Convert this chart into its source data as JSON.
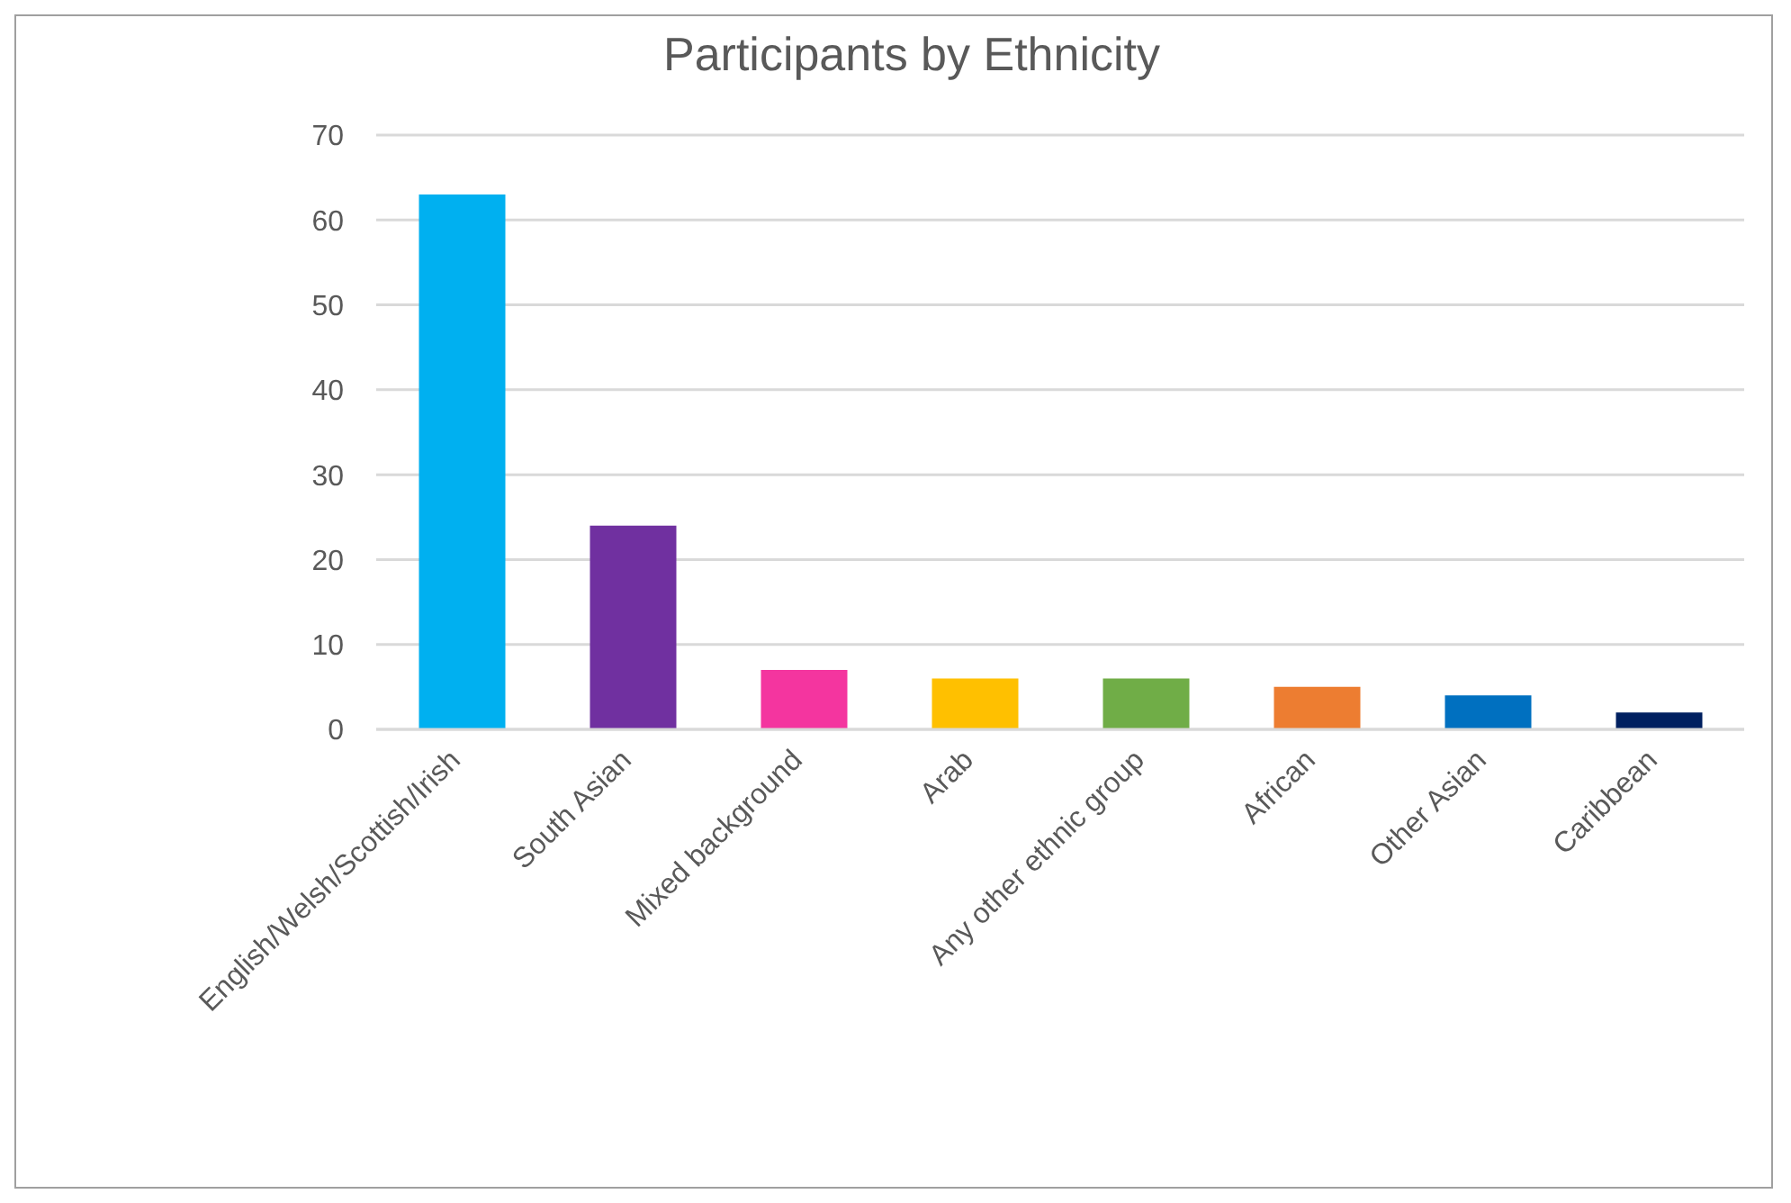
{
  "chart_data": {
    "type": "bar",
    "title": "Participants by Ethnicity",
    "categories": [
      "English/Welsh/Scottish/Irish",
      "South Asian",
      "Mixed background",
      "Arab",
      "Any other ethnic group",
      "African",
      "Other Asian",
      "Caribbean"
    ],
    "values": [
      63,
      24,
      7,
      6,
      6,
      5,
      4,
      2
    ],
    "colors": [
      "#00b0f0",
      "#7030a0",
      "#f4359f",
      "#ffc000",
      "#70ad47",
      "#ed7d31",
      "#0070c0",
      "#002060"
    ],
    "ylim": [
      0,
      70
    ],
    "yticks": [
      0,
      10,
      20,
      30,
      40,
      50,
      60,
      70
    ],
    "grid": "y",
    "legend": false
  }
}
